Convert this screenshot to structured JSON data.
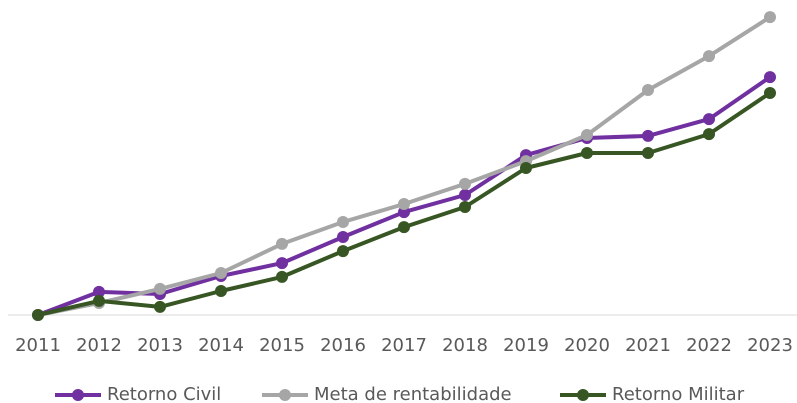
{
  "chart_data": {
    "type": "line",
    "categories": [
      "2011",
      "2012",
      "2013",
      "2014",
      "2015",
      "2016",
      "2017",
      "2018",
      "2019",
      "2020",
      "2021",
      "2022",
      "2023"
    ],
    "ylim": [
      0,
      105
    ],
    "series": [
      {
        "name": "Retorno Civil",
        "color": "#7030a0",
        "values": [
          0,
          7.7,
          7,
          13,
          17.3,
          26,
          34.3,
          40,
          53.3,
          59,
          59.7,
          65.3,
          79.3
        ]
      },
      {
        "name": "Meta de rentabilidade",
        "color": "#a6a6a6",
        "values": [
          0,
          4,
          8.7,
          14,
          23.7,
          31,
          37,
          43.7,
          51.3,
          60,
          75,
          86.3,
          99.3
        ]
      },
      {
        "name": "Retorno Militar",
        "color": "#375623",
        "values": [
          0,
          4.7,
          2.7,
          8,
          12.7,
          21.3,
          29.3,
          36,
          49,
          54,
          54,
          60.3,
          74
        ]
      }
    ],
    "legend": "bottom"
  }
}
